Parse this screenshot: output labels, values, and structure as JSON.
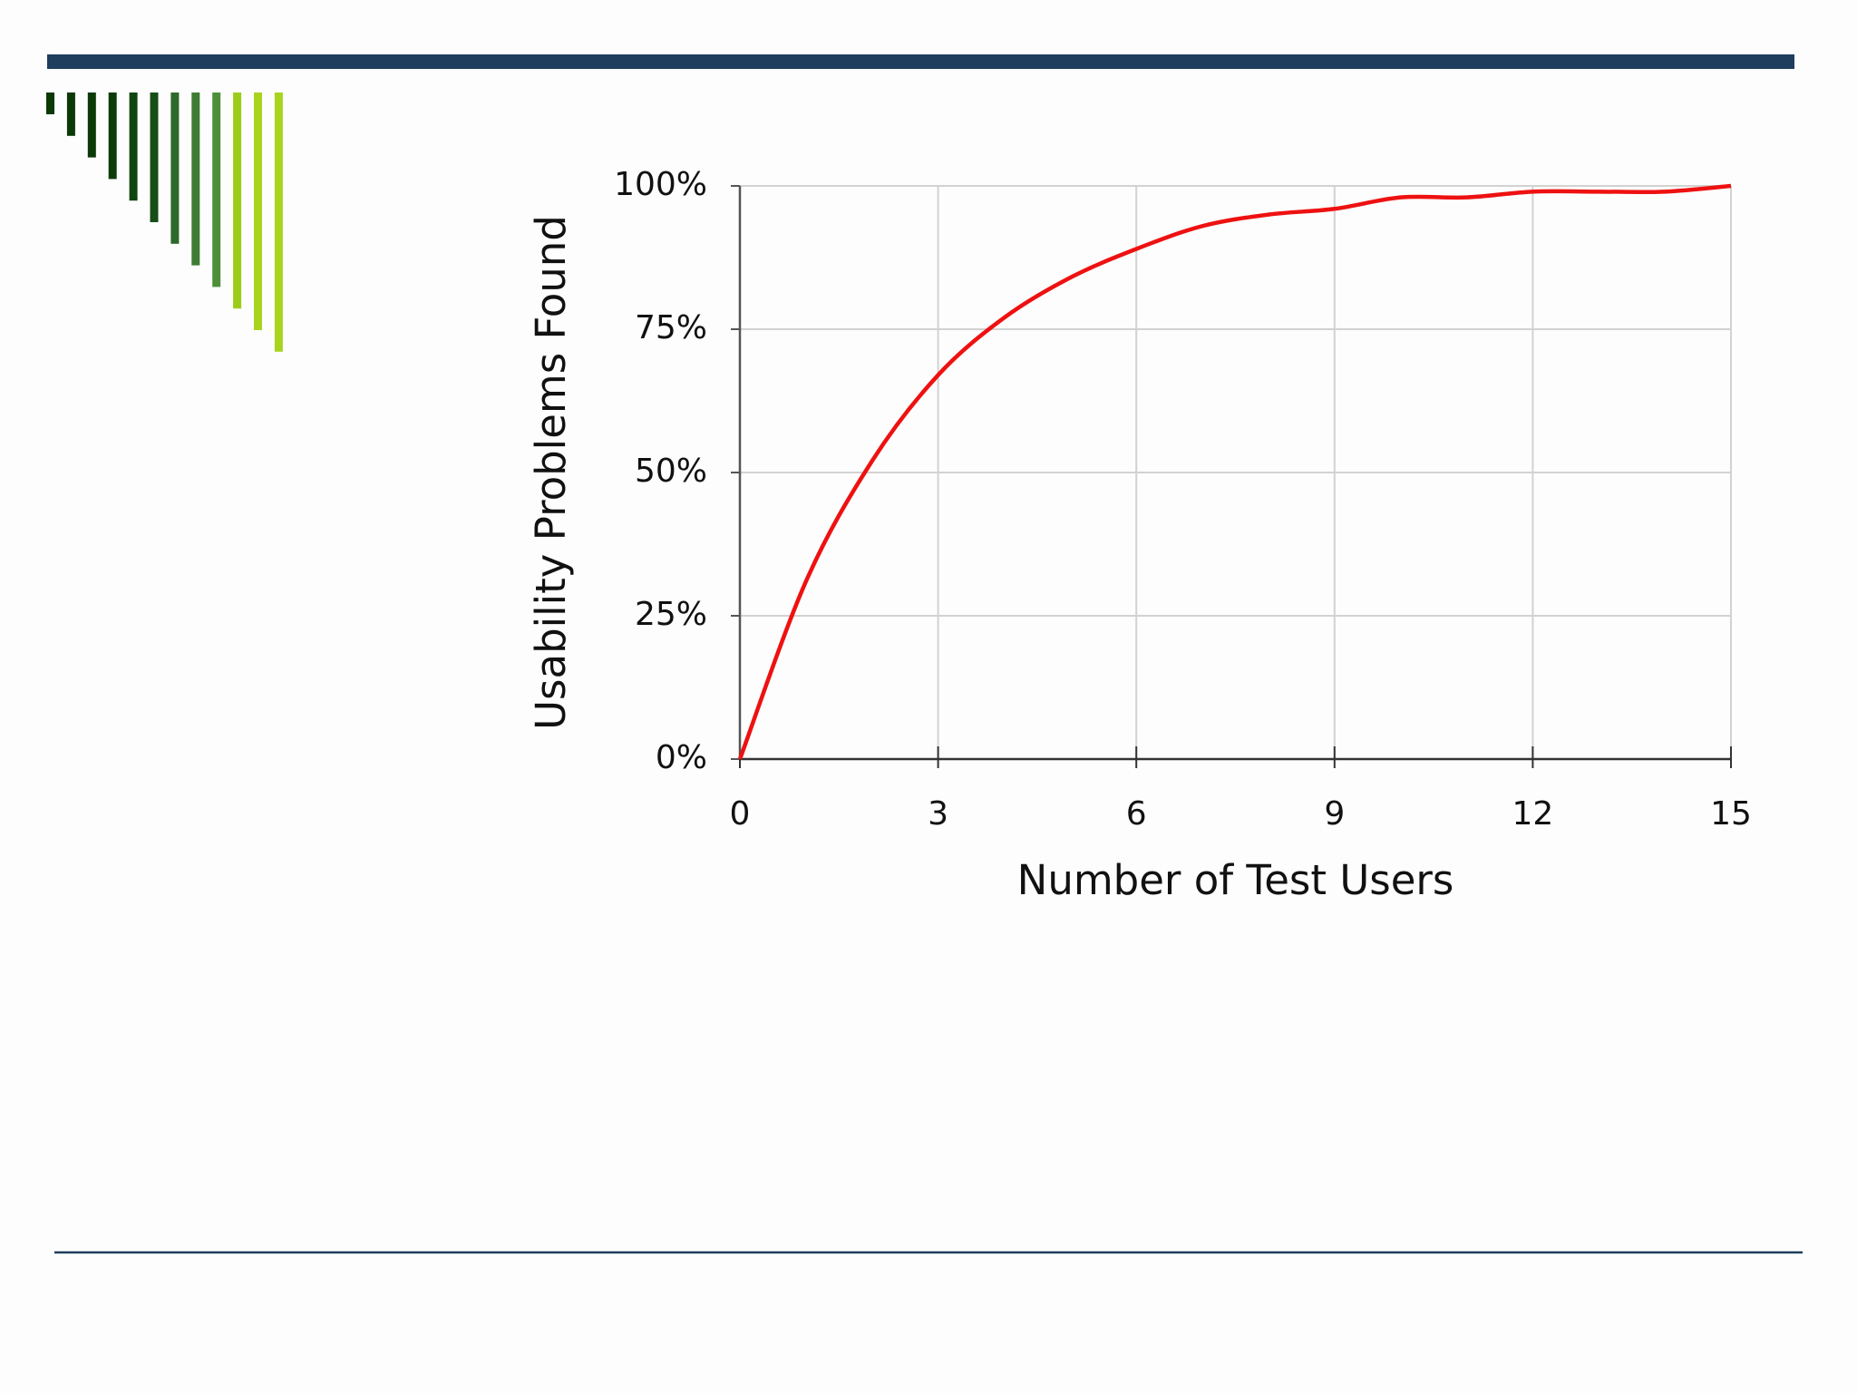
{
  "chart_data": {
    "type": "line",
    "x_label": "Number of Test Users",
    "y_label": "Usability Problems Found",
    "x": [
      0,
      1,
      2,
      3,
      4,
      5,
      6,
      7,
      8,
      9,
      10,
      11,
      12,
      13,
      14,
      15
    ],
    "values": [
      0,
      31,
      52,
      67,
      77,
      84,
      89,
      93,
      95,
      96,
      98,
      98,
      99,
      99,
      99,
      100
    ],
    "color": "#ee1111",
    "xlim": [
      0,
      15
    ],
    "ylim": [
      0,
      100
    ],
    "xticks": [
      0,
      3,
      6,
      9,
      12,
      15
    ],
    "yticks": [
      {
        "value": 0,
        "label": "0%"
      },
      {
        "value": 25,
        "label": "25%"
      },
      {
        "value": 50,
        "label": "50%"
      },
      {
        "value": 75,
        "label": "75%"
      },
      {
        "value": 100,
        "label": "100%"
      }
    ],
    "grid": true
  }
}
